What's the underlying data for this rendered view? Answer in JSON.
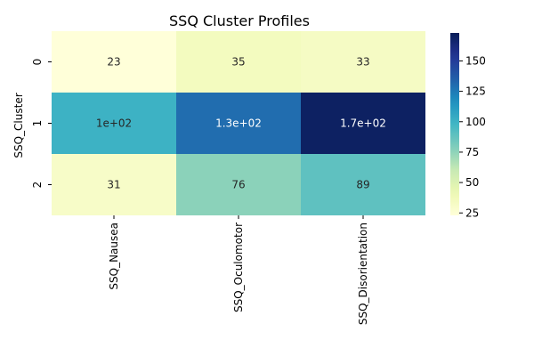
{
  "chart_data": {
    "type": "heatmap",
    "title": "SSQ Cluster Profiles",
    "xlabel": "",
    "ylabel": "SSQ_Cluster",
    "x_categories": [
      "SSQ_Nausea",
      "SSQ_Oculomotor",
      "SSQ_Disorientation"
    ],
    "y_categories": [
      "0",
      "1",
      "2"
    ],
    "values": [
      [
        23,
        35,
        33
      ],
      [
        100,
        130,
        170
      ],
      [
        31,
        76,
        89
      ]
    ],
    "annotations": [
      [
        "23",
        "35",
        "33"
      ],
      [
        "1e+02",
        "1.3e+02",
        "1.7e+02"
      ],
      [
        "31",
        "76",
        "89"
      ]
    ],
    "colormap": "YlGnBu",
    "colorbar": {
      "range": [
        23,
        173
      ],
      "ticks": [
        25,
        50,
        75,
        100,
        125,
        150
      ]
    },
    "legend_placement": "right"
  }
}
